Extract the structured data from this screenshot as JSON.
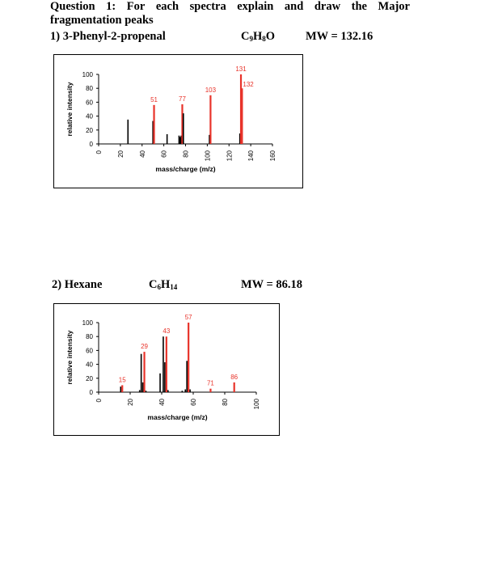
{
  "question": {
    "line1_words": [
      "Question",
      "1:",
      "For",
      "each",
      "spectra",
      "explain",
      "and",
      "draw",
      "the",
      "Major"
    ],
    "line2": "fragmentation peaks"
  },
  "compound1": {
    "name": "1) 3-Phenyl-2-propenal",
    "formula_parts": [
      "C",
      "9",
      "H",
      "8",
      "O"
    ],
    "mw": "MW = 132.16"
  },
  "compound2": {
    "name": "2) Hexane",
    "formula_parts": [
      "C",
      "6",
      "H",
      "14",
      ""
    ],
    "mw": "MW = 86.18"
  },
  "colors": {
    "black_peak": "#000000",
    "red_peak": "#e8332a",
    "label_red": "#e8332a"
  },
  "chart_data": [
    {
      "type": "bar",
      "title": "",
      "xlabel": "mass/charge (m/z)",
      "ylabel": "relative intensity",
      "xlim": [
        0,
        160
      ],
      "ylim": [
        0,
        100
      ],
      "xticks": [
        0,
        20,
        40,
        60,
        80,
        100,
        120,
        140,
        160
      ],
      "yticks": [
        0,
        20,
        40,
        60,
        80,
        100
      ],
      "peaks": [
        {
          "mz": 27,
          "intensity": 35,
          "color": "black",
          "label": ""
        },
        {
          "mz": 50,
          "intensity": 33,
          "color": "black",
          "label": ""
        },
        {
          "mz": 51,
          "intensity": 56,
          "color": "red",
          "label": "51"
        },
        {
          "mz": 63,
          "intensity": 14,
          "color": "black",
          "label": ""
        },
        {
          "mz": 74,
          "intensity": 12,
          "color": "black",
          "label": ""
        },
        {
          "mz": 75,
          "intensity": 10,
          "color": "black",
          "label": ""
        },
        {
          "mz": 76,
          "intensity": 12,
          "color": "black",
          "label": ""
        },
        {
          "mz": 77,
          "intensity": 57,
          "color": "red",
          "label": "77"
        },
        {
          "mz": 78,
          "intensity": 44,
          "color": "black",
          "label": ""
        },
        {
          "mz": 102,
          "intensity": 13,
          "color": "black",
          "label": ""
        },
        {
          "mz": 103,
          "intensity": 70,
          "color": "red",
          "label": "103"
        },
        {
          "mz": 130,
          "intensity": 15,
          "color": "black",
          "label": ""
        },
        {
          "mz": 131,
          "intensity": 100,
          "color": "red",
          "label": "131"
        },
        {
          "mz": 132,
          "intensity": 80,
          "color": "red",
          "label": "132"
        }
      ]
    },
    {
      "type": "bar",
      "title": "",
      "xlabel": "mass/charge (m/z)",
      "ylabel": "relative intensity",
      "xlim": [
        0,
        100
      ],
      "ylim": [
        0,
        100
      ],
      "xticks": [
        0,
        20,
        40,
        60,
        80,
        100
      ],
      "yticks": [
        0,
        20,
        40,
        60,
        80,
        100
      ],
      "peaks": [
        {
          "mz": 14,
          "intensity": 8,
          "color": "black",
          "label": ""
        },
        {
          "mz": 15,
          "intensity": 10,
          "color": "red",
          "label": "15"
        },
        {
          "mz": 26,
          "intensity": 3,
          "color": "black",
          "label": ""
        },
        {
          "mz": 27,
          "intensity": 55,
          "color": "black",
          "label": ""
        },
        {
          "mz": 28,
          "intensity": 14,
          "color": "black",
          "label": ""
        },
        {
          "mz": 29,
          "intensity": 58,
          "color": "red",
          "label": "29"
        },
        {
          "mz": 30,
          "intensity": 2,
          "color": "black",
          "label": ""
        },
        {
          "mz": 39,
          "intensity": 27,
          "color": "black",
          "label": ""
        },
        {
          "mz": 41,
          "intensity": 80,
          "color": "black",
          "label": ""
        },
        {
          "mz": 42,
          "intensity": 43,
          "color": "black",
          "label": ""
        },
        {
          "mz": 43,
          "intensity": 80,
          "color": "red",
          "label": "43"
        },
        {
          "mz": 44,
          "intensity": 3,
          "color": "black",
          "label": ""
        },
        {
          "mz": 53,
          "intensity": 2,
          "color": "black",
          "label": ""
        },
        {
          "mz": 55,
          "intensity": 4,
          "color": "black",
          "label": ""
        },
        {
          "mz": 56,
          "intensity": 45,
          "color": "black",
          "label": ""
        },
        {
          "mz": 57,
          "intensity": 100,
          "color": "red",
          "label": "57"
        },
        {
          "mz": 58,
          "intensity": 4,
          "color": "black",
          "label": ""
        },
        {
          "mz": 71,
          "intensity": 5,
          "color": "red",
          "label": "71"
        },
        {
          "mz": 86,
          "intensity": 14,
          "color": "red",
          "label": "86"
        }
      ]
    }
  ]
}
